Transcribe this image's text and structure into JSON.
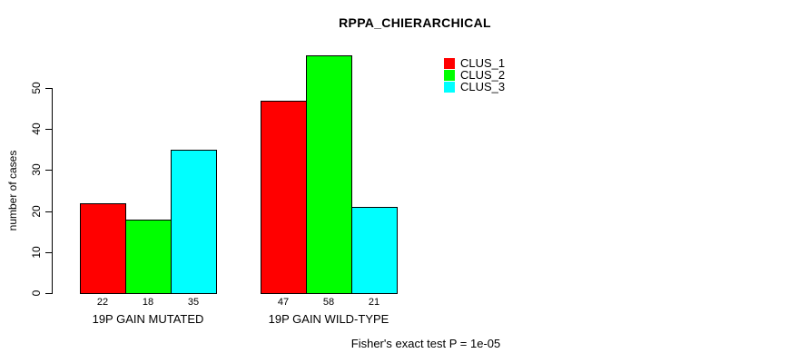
{
  "chart_data": {
    "type": "bar",
    "title": "RPPA_CHIERARCHICAL",
    "xlabel": "",
    "ylabel": "number of cases",
    "categories": [
      "19P GAIN MUTATED",
      "19P GAIN WILD-TYPE"
    ],
    "series": [
      {
        "name": "CLUS_1",
        "color": "#FF0000",
        "values": [
          22,
          47
        ]
      },
      {
        "name": "CLUS_2",
        "color": "#00FF00",
        "values": [
          18,
          58
        ]
      },
      {
        "name": "CLUS_3",
        "color": "#00FFFF",
        "values": [
          35,
          21
        ]
      }
    ],
    "bar_value_labels": [
      [
        22,
        18,
        35
      ],
      [
        47,
        58,
        21
      ]
    ],
    "yticks": [
      0,
      10,
      20,
      30,
      40,
      50
    ],
    "ylim": [
      0,
      50
    ],
    "grid": false,
    "legend_position": "top-right",
    "annotation": "Fisher's exact test P = 1e-05",
    "bar_border_color": "#000000",
    "background_color": "#FFFFFF"
  }
}
